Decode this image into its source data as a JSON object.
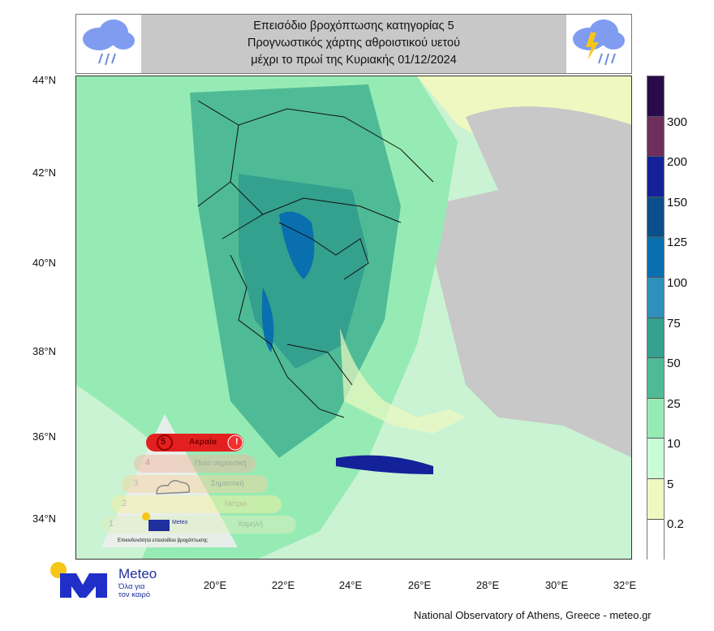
{
  "header": {
    "title_lines": [
      "Επεισόδιο βροχόπτωσης κατηγορίας 5",
      "Προγνωστικός χάρτης αθροιστικού υετού",
      "μέχρι το πρωί της Κυριακής 01/12/2024"
    ],
    "left_icon": "rain-cloud-icon",
    "right_icon": "thunderstorm-cloud-icon"
  },
  "map": {
    "lat_labels": [
      "44°N",
      "42°N",
      "40°N",
      "38°N",
      "36°N",
      "34°N"
    ],
    "lon_labels": [
      "20°E",
      "22°E",
      "24°E",
      "26°E",
      "28°E",
      "30°E",
      "32°E"
    ],
    "land_color": "#c8c8c8"
  },
  "colorbar": {
    "labels": [
      "300",
      "200",
      "150",
      "125",
      "100",
      "75",
      "50",
      "25",
      "10",
      "5",
      "0.2"
    ],
    "colors": [
      "#2a0a4a",
      "#6e2e5e",
      "#14229a",
      "#0a4f8a",
      "#0a6fae",
      "#2f90bb",
      "#34a08e",
      "#4fbb96",
      "#96ebb4",
      "#c9fbd6",
      "#eef8c0",
      "#ffffff"
    ]
  },
  "legend": {
    "levels": [
      {
        "num": "5",
        "label": "Ακραία",
        "color": "#e32020"
      },
      {
        "num": "4",
        "label": "Πολύ σημαντική",
        "color": "#f0b8a0"
      },
      {
        "num": "3",
        "label": "Σημαντική",
        "color": "#f5d4a0"
      },
      {
        "num": "2",
        "label": "Μέτρια",
        "color": "#f5efa0"
      },
      {
        "num": "1",
        "label": "Χαμηλή",
        "color": "#dff0c0"
      }
    ],
    "caption": "Επικινδυνότητα επεισοδίου βροχόπτωσης",
    "brand": "Meteo"
  },
  "logo": {
    "name": "Meteo",
    "tagline_1": "Όλα για",
    "tagline_2": "τον καιρό"
  },
  "footer": "National Observatory of Athens, Greece - meteo.gr"
}
